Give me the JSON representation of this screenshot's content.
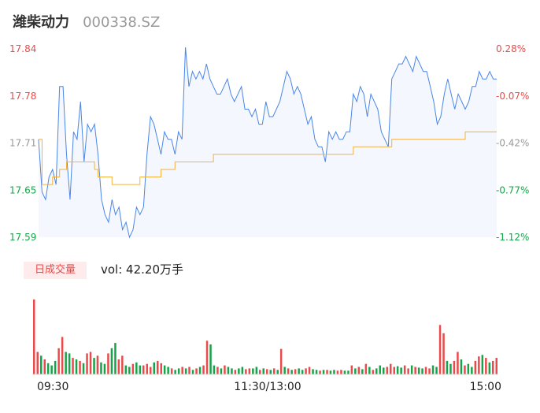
{
  "header": {
    "name": "潍柴动力",
    "code": "000338.SZ"
  },
  "volume_panel": {
    "badge": "日成交量",
    "vol_text": "vol: 42.20万手"
  },
  "colors": {
    "up": "#e84b4b",
    "down": "#18a34a",
    "neutral": "#999999",
    "price_line": "#4a86e8",
    "avg_line": "#f4b13e",
    "area_fill": "#f4f7fd"
  },
  "chart_data": [
    {
      "type": "line",
      "title": "",
      "xlabel": "",
      "ylabel": "",
      "ylim": [
        17.59,
        17.84
      ],
      "y_ticks": [
        "17.84",
        "17.78",
        "17.71",
        "17.65",
        "17.59"
      ],
      "y_ticks_right": [
        "0.28%",
        "-0.07%",
        "-0.42%",
        "-0.77%",
        "-1.12%"
      ],
      "x_ticks": [
        "09:30",
        "11:30/13:00",
        "15:00"
      ],
      "series": [
        {
          "role": "price",
          "values": [
            17.72,
            17.65,
            17.64,
            17.67,
            17.68,
            17.66,
            17.79,
            17.79,
            17.7,
            17.64,
            17.73,
            17.72,
            17.77,
            17.69,
            17.74,
            17.73,
            17.74,
            17.7,
            17.64,
            17.62,
            17.61,
            17.64,
            17.62,
            17.63,
            17.6,
            17.61,
            17.59,
            17.6,
            17.63,
            17.62,
            17.63,
            17.7,
            17.75,
            17.74,
            17.72,
            17.7,
            17.73,
            17.72,
            17.72,
            17.7,
            17.73,
            17.72,
            17.85,
            17.79,
            17.81,
            17.8,
            17.81,
            17.8,
            17.82,
            17.8,
            17.79,
            17.78,
            17.78,
            17.79,
            17.8,
            17.78,
            17.77,
            17.78,
            17.79,
            17.76,
            17.76,
            17.75,
            17.76,
            17.74,
            17.74,
            17.77,
            17.75,
            17.75,
            17.76,
            17.77,
            17.79,
            17.81,
            17.8,
            17.78,
            17.79,
            17.78,
            17.76,
            17.74,
            17.75,
            17.72,
            17.71,
            17.71,
            17.69,
            17.73,
            17.72,
            17.73,
            17.72,
            17.72,
            17.73,
            17.73,
            17.78,
            17.77,
            17.79,
            17.78,
            17.75,
            17.78,
            17.77,
            17.76,
            17.73,
            17.72,
            17.71,
            17.8,
            17.81,
            17.82,
            17.82,
            17.83,
            17.82,
            17.81,
            17.83,
            17.82,
            17.81,
            17.81,
            17.79,
            17.77,
            17.74,
            17.75,
            17.78,
            17.8,
            17.78,
            17.76,
            17.78,
            17.77,
            17.76,
            17.77,
            17.79,
            17.79,
            17.81,
            17.8,
            17.8,
            17.81,
            17.8,
            17.8
          ],
          "colors": "price_line"
        },
        {
          "role": "average",
          "values": [
            17.72,
            17.66,
            17.66,
            17.66,
            17.67,
            17.67,
            17.68,
            17.68,
            17.69,
            17.69,
            17.69,
            17.69,
            17.69,
            17.69,
            17.69,
            17.69,
            17.68,
            17.67,
            17.67,
            17.67,
            17.67,
            17.66,
            17.66,
            17.66,
            17.66,
            17.66,
            17.66,
            17.66,
            17.66,
            17.67,
            17.67,
            17.67,
            17.67,
            17.67,
            17.67,
            17.68,
            17.68,
            17.68,
            17.68,
            17.69,
            17.69,
            17.69,
            17.69,
            17.69,
            17.69,
            17.69,
            17.69,
            17.69,
            17.69,
            17.69,
            17.7,
            17.7,
            17.7,
            17.7,
            17.7,
            17.7,
            17.7,
            17.7,
            17.7,
            17.7,
            17.7,
            17.7,
            17.7,
            17.7,
            17.7,
            17.7,
            17.7,
            17.7,
            17.7,
            17.7,
            17.7,
            17.7,
            17.7,
            17.7,
            17.7,
            17.7,
            17.7,
            17.7,
            17.7,
            17.7,
            17.7,
            17.7,
            17.7,
            17.7,
            17.7,
            17.7,
            17.7,
            17.7,
            17.7,
            17.7,
            17.71,
            17.71,
            17.71,
            17.71,
            17.71,
            17.71,
            17.71,
            17.71,
            17.71,
            17.71,
            17.71,
            17.72,
            17.72,
            17.72,
            17.72,
            17.72,
            17.72,
            17.72,
            17.72,
            17.72,
            17.72,
            17.72,
            17.72,
            17.72,
            17.72,
            17.72,
            17.72,
            17.72,
            17.72,
            17.72,
            17.72,
            17.72,
            17.73,
            17.73,
            17.73,
            17.73,
            17.73,
            17.73,
            17.73,
            17.73,
            17.73,
            17.73
          ],
          "colors": "avg_line"
        }
      ]
    },
    {
      "type": "bar",
      "title": "",
      "xlabel": "",
      "ylabel": "",
      "ylim": [
        0,
        1
      ],
      "series": [
        {
          "role": "volume",
          "values": [
            1.0,
            0.3,
            0.25,
            0.2,
            0.15,
            0.12,
            0.18,
            0.35,
            0.5,
            0.3,
            0.28,
            0.22,
            0.2,
            0.18,
            0.15,
            0.28,
            0.3,
            0.22,
            0.25,
            0.16,
            0.14,
            0.28,
            0.35,
            0.42,
            0.2,
            0.25,
            0.12,
            0.1,
            0.14,
            0.16,
            0.12,
            0.12,
            0.14,
            0.1,
            0.16,
            0.18,
            0.15,
            0.12,
            0.1,
            0.08,
            0.06,
            0.08,
            0.1,
            0.08,
            0.1,
            0.06,
            0.08,
            0.1,
            0.12,
            0.45,
            0.4,
            0.12,
            0.1,
            0.08,
            0.12,
            0.1,
            0.08,
            0.06,
            0.08,
            0.1,
            0.07,
            0.08,
            0.08,
            0.1,
            0.06,
            0.08,
            0.07,
            0.06,
            0.08,
            0.06,
            0.34,
            0.1,
            0.08,
            0.06,
            0.07,
            0.08,
            0.06,
            0.08,
            0.1,
            0.07,
            0.06,
            0.05,
            0.06,
            0.06,
            0.05,
            0.06,
            0.05,
            0.06,
            0.05,
            0.05,
            0.12,
            0.08,
            0.1,
            0.07,
            0.14,
            0.1,
            0.06,
            0.08,
            0.12,
            0.09,
            0.1,
            0.14,
            0.1,
            0.11,
            0.09,
            0.12,
            0.08,
            0.12,
            0.1,
            0.09,
            0.08,
            0.1,
            0.08,
            0.12,
            0.1,
            0.66,
            0.55,
            0.18,
            0.14,
            0.18,
            0.3,
            0.2,
            0.12,
            0.14,
            0.1,
            0.18,
            0.24,
            0.26,
            0.22,
            0.16,
            0.18,
            0.22
          ],
          "colors": [
            "up",
            "up",
            "down",
            "up",
            "down",
            "down",
            "down",
            "up",
            "up",
            "down",
            "down",
            "up",
            "down",
            "up",
            "down",
            "up",
            "up",
            "down",
            "up",
            "down",
            "down",
            "up",
            "down",
            "down",
            "up",
            "up",
            "down",
            "down",
            "up",
            "down",
            "down",
            "up",
            "up",
            "up",
            "down",
            "up",
            "up",
            "down",
            "down",
            "up",
            "down",
            "down",
            "up",
            "down",
            "up",
            "down",
            "up",
            "down",
            "up",
            "up",
            "down",
            "down",
            "up",
            "down",
            "up",
            "down",
            "down",
            "up",
            "down",
            "down",
            "up",
            "up",
            "down",
            "down",
            "up",
            "down",
            "up",
            "down",
            "up",
            "down",
            "up",
            "down",
            "up",
            "down",
            "up",
            "down",
            "down",
            "up",
            "up",
            "down",
            "down",
            "up",
            "down",
            "up",
            "down",
            "down",
            "up",
            "up",
            "down",
            "down",
            "up",
            "down",
            "up",
            "down",
            "up",
            "down",
            "up",
            "down",
            "down",
            "down",
            "up",
            "up",
            "up",
            "down",
            "down",
            "up",
            "up",
            "down",
            "up",
            "down",
            "down",
            "up",
            "up",
            "down",
            "down",
            "up",
            "up",
            "down",
            "down",
            "up",
            "up",
            "down",
            "up",
            "down",
            "down",
            "up",
            "up",
            "down",
            "up",
            "down",
            "up",
            "up"
          ]
        }
      ]
    }
  ]
}
